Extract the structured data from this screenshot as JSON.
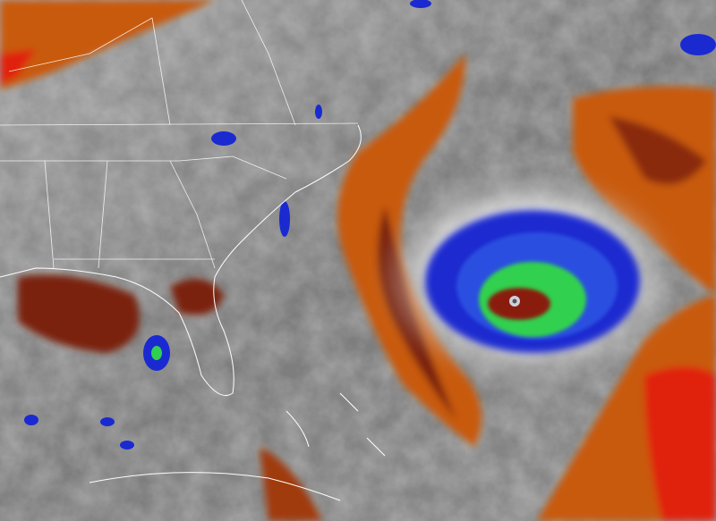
{
  "image": {
    "kind": "infrared water-vapor satellite imagery",
    "colors": {
      "clouds_gray": "#8a8a8a",
      "bright_clouds": "#e8e8e8",
      "dry_orange": "#c85a10",
      "dry_red": "#7a2008",
      "very_dry_red": "#e02010",
      "cold_blue": "#1a2ad0",
      "colder_green": "#30d050",
      "eye_core": "#8a1a10",
      "borders": "#ffffff"
    }
  }
}
